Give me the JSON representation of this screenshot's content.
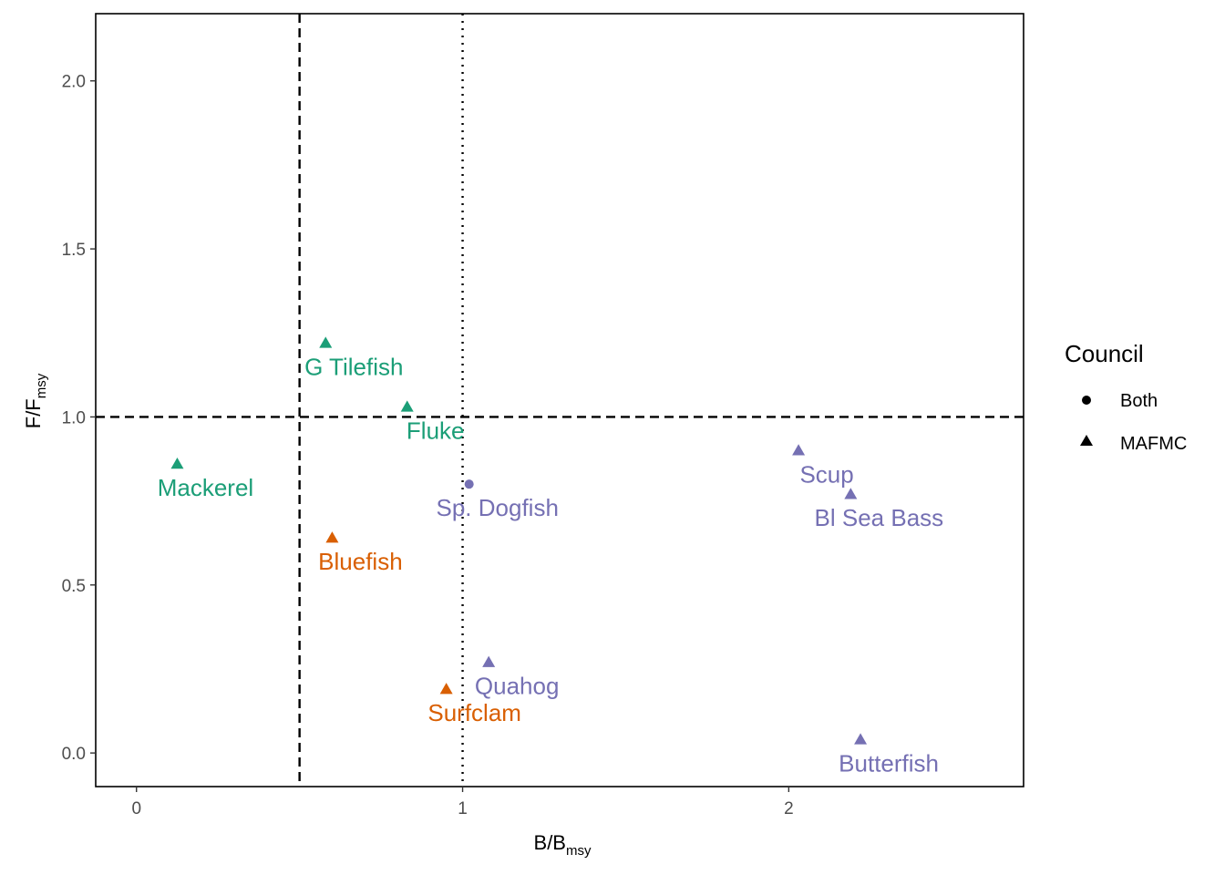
{
  "chart_data": {
    "type": "scatter",
    "xlabel": {
      "main": "B/B",
      "sub": "msy"
    },
    "ylabel": {
      "main": "F/F",
      "sub": "msy"
    },
    "xlim": [
      -0.125,
      2.72
    ],
    "ylim": [
      -0.1,
      2.2
    ],
    "x_ticks": [
      0,
      1,
      2
    ],
    "x_tick_labels": [
      "0",
      "1",
      "2"
    ],
    "y_ticks": [
      0.0,
      0.5,
      1.0,
      1.5,
      2.0
    ],
    "y_tick_labels": [
      "0.0",
      "0.5",
      "1.0",
      "1.5",
      "2.0"
    ],
    "grid": false,
    "reference_lines": [
      {
        "axis": "x",
        "value": 0.5,
        "style": "dashed"
      },
      {
        "axis": "x",
        "value": 1.0,
        "style": "dotted"
      },
      {
        "axis": "y",
        "value": 1.0,
        "style": "dashed"
      }
    ],
    "legend": {
      "title": "Council",
      "position": "right",
      "items": [
        {
          "label": "Both",
          "shape": "circle"
        },
        {
          "label": "MAFMC",
          "shape": "triangle"
        }
      ]
    },
    "points": [
      {
        "label": "G Tilefish",
        "x": 0.58,
        "y": 1.22,
        "council": "MAFMC",
        "color": "#1b9e77"
      },
      {
        "label": "Fluke",
        "x": 0.83,
        "y": 1.03,
        "council": "MAFMC",
        "color": "#1b9e77"
      },
      {
        "label": "Mackerel",
        "x": 0.125,
        "y": 0.86,
        "council": "MAFMC",
        "color": "#1b9e77"
      },
      {
        "label": "Bluefish",
        "x": 0.6,
        "y": 0.64,
        "council": "MAFMC",
        "color": "#d95f02"
      },
      {
        "label": "Surfclam",
        "x": 0.95,
        "y": 0.19,
        "council": "MAFMC",
        "color": "#d95f02"
      },
      {
        "label": "Sp. Dogfish",
        "x": 1.02,
        "y": 0.8,
        "council": "Both",
        "color": "#7570b3"
      },
      {
        "label": "Quahog",
        "x": 1.08,
        "y": 0.27,
        "council": "MAFMC",
        "color": "#7570b3"
      },
      {
        "label": "Scup",
        "x": 2.03,
        "y": 0.9,
        "council": "MAFMC",
        "color": "#7570b3"
      },
      {
        "label": "Bl Sea Bass",
        "x": 2.19,
        "y": 0.77,
        "council": "MAFMC",
        "color": "#7570b3"
      },
      {
        "label": "Butterfish",
        "x": 2.22,
        "y": 0.04,
        "council": "MAFMC",
        "color": "#7570b3"
      }
    ]
  }
}
